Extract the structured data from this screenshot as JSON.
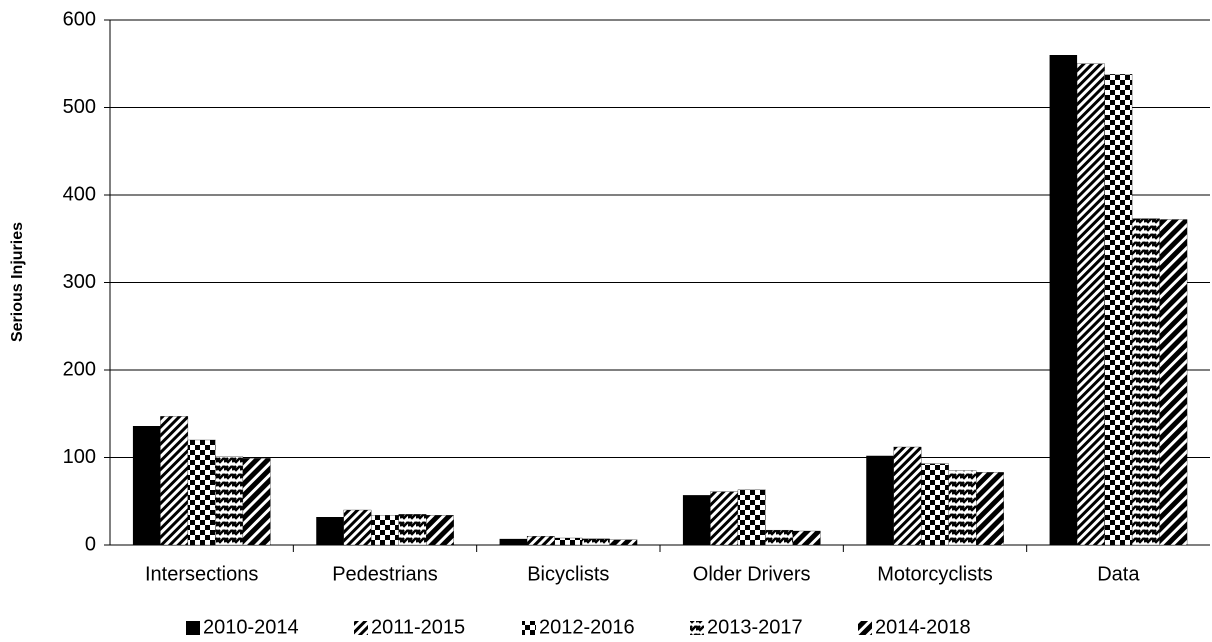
{
  "chart_data": {
    "type": "bar",
    "y_label": "Serious Injuries",
    "categories": [
      "Intersections",
      "Pedestrians",
      "Bicyclists",
      "Older Drivers",
      "Motorcyclists",
      "Data"
    ],
    "series": [
      {
        "name": "2010-2014",
        "color": "#000000",
        "pattern": "solid",
        "values": [
          136,
          32,
          7,
          57,
          102,
          560
        ]
      },
      {
        "name": "2011-2015",
        "color": "#000000",
        "pattern": "diagonal",
        "values": [
          147,
          40,
          10,
          61,
          112,
          550
        ]
      },
      {
        "name": "2012-2016",
        "color": "#000000",
        "pattern": "checker",
        "values": [
          120,
          34,
          8,
          63,
          93,
          538
        ]
      },
      {
        "name": "2013-2017",
        "color": "#000000",
        "pattern": "wave",
        "values": [
          101,
          35,
          7,
          17,
          85,
          373
        ]
      },
      {
        "name": "2014-2018",
        "color": "#000000",
        "pattern": "zigzag",
        "values": [
          99,
          34,
          6,
          16,
          83,
          372
        ]
      }
    ],
    "ylim": [
      0,
      600
    ],
    "yticks": [
      0,
      100,
      200,
      300,
      400,
      500,
      600
    ],
    "grid": true,
    "legend": "bottom"
  }
}
